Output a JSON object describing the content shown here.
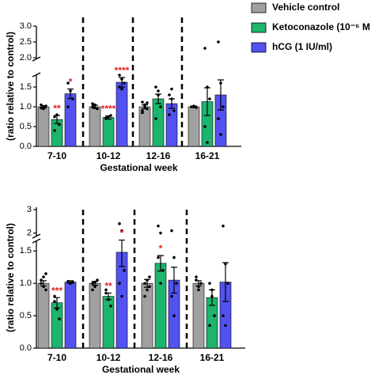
{
  "chart_data": [
    {
      "type": "bar",
      "ylabel": "(ratio relative to control)",
      "xlabel": "Gestational week",
      "categories": [
        "7-10",
        "10-12",
        "12-16",
        "16-21"
      ],
      "ylim": [
        0,
        1.8
      ],
      "yticks": [
        {
          "value": 0,
          "label": "0.0"
        },
        {
          "value": 0.5,
          "label": "0.5"
        },
        {
          "value": 1.0,
          "label": "1.0"
        },
        {
          "value": 1.5,
          "label": "1.5"
        }
      ],
      "ylim_upper": [
        1.95,
        3.0
      ],
      "yticks_upper": [
        {
          "value": 2.0,
          "label": "2.0"
        },
        {
          "value": 2.5,
          "label": "2.5"
        },
        {
          "value": 3.0,
          "label": "3.0"
        }
      ],
      "series": [
        {
          "name": "Vehicle control",
          "color": "#a0a0a0",
          "values": [
            1.0,
            1.0,
            1.0,
            1.0
          ],
          "errors": [
            0.03,
            0.04,
            0.05,
            0.02
          ],
          "points": [
            [
              0.97,
              1.0,
              1.02,
              1.05,
              0.95
            ],
            [
              1.0,
              1.05,
              0.95,
              1.08,
              0.98
            ],
            [
              0.9,
              1.0,
              1.1,
              0.85,
              1.05,
              0.95,
              1.12
            ],
            [
              1.0,
              1.02,
              0.98
            ]
          ]
        },
        {
          "name": "Ketoconazole (10⁻⁶ M",
          "color": "#1db46e",
          "values": [
            0.68,
            0.73,
            1.2,
            1.13
          ],
          "errors": [
            0.1,
            0.04,
            0.12,
            0.35
          ],
          "points": [
            [
              0.75,
              0.8,
              0.55,
              0.4
            ],
            [
              0.7,
              0.75,
              0.78,
              0.72
            ],
            [
              1.5,
              1.3,
              1.0,
              0.7,
              1.4
            ],
            [
              2.3,
              1.5,
              1.2,
              0.5,
              0.1
            ]
          ]
        },
        {
          "name": "hCG (1 IU/ml)",
          "color": "#5252f0",
          "values": [
            1.33,
            1.62,
            1.08,
            1.3
          ],
          "errors": [
            0.12,
            0.12,
            0.12,
            0.38
          ],
          "points": [
            [
              1.6,
              1.4,
              1.2,
              1.0
            ],
            [
              1.8,
              1.7,
              1.6,
              1.5,
              1.45
            ],
            [
              1.3,
              1.2,
              0.9,
              0.8,
              1.45
            ],
            [
              2.5,
              1.6,
              1.0,
              0.7,
              0.3
            ]
          ]
        }
      ],
      "annotations": [
        {
          "text": "**",
          "series": 1,
          "category": 0
        },
        {
          "text": "*",
          "series": 2,
          "category": 0
        },
        {
          "text": "****",
          "series": 1,
          "category": 1
        },
        {
          "text": "****",
          "series": 2,
          "category": 1
        }
      ]
    },
    {
      "type": "bar",
      "ylabel": "(ratio relative to control)",
      "xlabel": "Gestational week",
      "categories": [
        "7-10",
        "10-12",
        "12-16",
        "16-21"
      ],
      "ylim": [
        0,
        1.65
      ],
      "yticks": [
        {
          "value": 0,
          "label": "0.0"
        },
        {
          "value": 0.5,
          "label": "0.5"
        },
        {
          "value": 1.0,
          "label": "1.0"
        },
        {
          "value": 1.5,
          "label": "1.5"
        }
      ],
      "ylim_upper": [
        1.85,
        3.1
      ],
      "yticks_upper": [
        2,
        3
      ],
      "series": [
        {
          "color": "#a0a0a0",
          "values": [
            1.0,
            1.0,
            1.0,
            1.0
          ],
          "errors": [
            0.04,
            0.03,
            0.06,
            0.04
          ],
          "points": [
            [
              1.0,
              1.1,
              0.9,
              1.05,
              0.95,
              1.15
            ],
            [
              1.0,
              0.95,
              1.05,
              0.9,
              1.02
            ],
            [
              1.0,
              0.9,
              1.1,
              0.8,
              1.05,
              0.95
            ],
            [
              1.05,
              0.95,
              1.0,
              1.1,
              0.9
            ]
          ]
        },
        {
          "color": "#1db46e",
          "values": [
            0.7,
            0.8,
            1.31,
            0.78
          ],
          "errors": [
            0.08,
            0.05,
            0.12,
            0.12
          ],
          "points": [
            [
              0.8,
              0.6,
              0.45,
              0.72
            ],
            [
              0.9,
              0.75,
              0.65,
              0.85
            ],
            [
              2.3,
              2.0,
              1.2,
              1.4,
              1.0
            ],
            [
              1.0,
              0.8,
              0.5,
              0.35,
              0.9
            ]
          ]
        },
        {
          "color": "#5252f0",
          "values": [
            1.02,
            1.48,
            1.05,
            1.02
          ],
          "errors": [
            0.02,
            0.22,
            0.2,
            0.3
          ],
          "points": [
            [
              1.03,
              1.0,
              1.02
            ],
            [
              2.4,
              2.1,
              1.2,
              1.0,
              0.8
            ],
            [
              2.1,
              1.4,
              1.0,
              0.8,
              0.5
            ],
            [
              2.3,
              1.3,
              1.0,
              0.5,
              0.35
            ]
          ]
        }
      ],
      "annotations": [
        {
          "text": "***",
          "series": 1,
          "category": 0
        },
        {
          "text": "**",
          "series": 1,
          "category": 1
        },
        {
          "text": "*",
          "series": 2,
          "category": 1
        },
        {
          "text": "*",
          "series": 1,
          "category": 2
        }
      ]
    }
  ]
}
